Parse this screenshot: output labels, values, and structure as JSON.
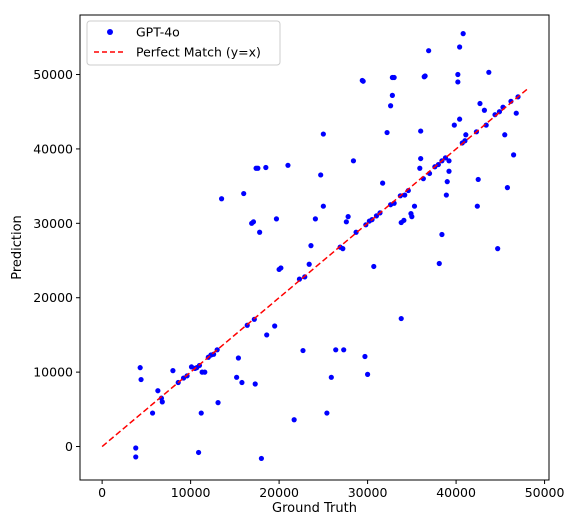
{
  "chart_data": {
    "type": "scatter",
    "title": "",
    "xlabel": "Ground Truth",
    "ylabel": "Prediction",
    "xlim": [
      -2500,
      50500
    ],
    "ylim": [
      -4500,
      58000
    ],
    "xticks": [
      0,
      10000,
      20000,
      30000,
      40000,
      50000
    ],
    "yticks": [
      0,
      10000,
      20000,
      30000,
      40000,
      50000
    ],
    "legend_position": "top-left",
    "series": [
      {
        "name": "GPT-4o",
        "kind": "scatter",
        "color": "#0000ff",
        "points": [
          [
            3800,
            -200
          ],
          [
            3800,
            -1400
          ],
          [
            4300,
            10600
          ],
          [
            4400,
            9000
          ],
          [
            5700,
            4500
          ],
          [
            6300,
            7500
          ],
          [
            6700,
            6500
          ],
          [
            6800,
            6000
          ],
          [
            8000,
            10200
          ],
          [
            8600,
            8600
          ],
          [
            9200,
            9200
          ],
          [
            9600,
            9500
          ],
          [
            10100,
            10700
          ],
          [
            10500,
            10500
          ],
          [
            10700,
            10600
          ],
          [
            10900,
            -800
          ],
          [
            11000,
            10900
          ],
          [
            11200,
            4500
          ],
          [
            11300,
            10000
          ],
          [
            11600,
            10000
          ],
          [
            12000,
            12000
          ],
          [
            12300,
            12300
          ],
          [
            12600,
            12400
          ],
          [
            13000,
            13000
          ],
          [
            13100,
            5900
          ],
          [
            13500,
            33300
          ],
          [
            15200,
            9300
          ],
          [
            15400,
            11900
          ],
          [
            15800,
            8600
          ],
          [
            16000,
            34000
          ],
          [
            16400,
            16300
          ],
          [
            16900,
            30000
          ],
          [
            17100,
            30200
          ],
          [
            17200,
            17100
          ],
          [
            17300,
            8400
          ],
          [
            17400,
            37400
          ],
          [
            17600,
            37400
          ],
          [
            17800,
            28800
          ],
          [
            18000,
            -1600
          ],
          [
            18500,
            37500
          ],
          [
            18600,
            15000
          ],
          [
            19500,
            16200
          ],
          [
            19700,
            30600
          ],
          [
            20000,
            23800
          ],
          [
            20200,
            24000
          ],
          [
            21000,
            37800
          ],
          [
            21700,
            3600
          ],
          [
            22300,
            22500
          ],
          [
            22700,
            12900
          ],
          [
            22900,
            22800
          ],
          [
            23400,
            24500
          ],
          [
            23600,
            27000
          ],
          [
            24100,
            30600
          ],
          [
            24700,
            36500
          ],
          [
            25000,
            42000
          ],
          [
            25000,
            32300
          ],
          [
            25400,
            4500
          ],
          [
            25900,
            9300
          ],
          [
            26400,
            13000
          ],
          [
            26900,
            26800
          ],
          [
            27200,
            26600
          ],
          [
            27300,
            13000
          ],
          [
            27600,
            30200
          ],
          [
            27800,
            30900
          ],
          [
            28400,
            38400
          ],
          [
            28700,
            28800
          ],
          [
            29400,
            49200
          ],
          [
            29500,
            49100
          ],
          [
            29700,
            12100
          ],
          [
            29800,
            29800
          ],
          [
            30000,
            9700
          ],
          [
            30200,
            30300
          ],
          [
            30500,
            30500
          ],
          [
            30700,
            24200
          ],
          [
            31000,
            31000
          ],
          [
            31400,
            31400
          ],
          [
            31700,
            35400
          ],
          [
            32200,
            42200
          ],
          [
            32600,
            32500
          ],
          [
            32600,
            45800
          ],
          [
            32800,
            47200
          ],
          [
            32800,
            49600
          ],
          [
            33000,
            49600
          ],
          [
            33000,
            32700
          ],
          [
            33700,
            33700
          ],
          [
            33800,
            17200
          ],
          [
            33800,
            30100
          ],
          [
            34100,
            30400
          ],
          [
            34200,
            33800
          ],
          [
            34600,
            34400
          ],
          [
            34900,
            31300
          ],
          [
            35000,
            30900
          ],
          [
            35300,
            32300
          ],
          [
            35900,
            37400
          ],
          [
            36000,
            38700
          ],
          [
            36000,
            42400
          ],
          [
            36300,
            36000
          ],
          [
            36400,
            49700
          ],
          [
            36500,
            49800
          ],
          [
            36900,
            53200
          ],
          [
            37000,
            36700
          ],
          [
            37600,
            37600
          ],
          [
            38000,
            37900
          ],
          [
            38100,
            24600
          ],
          [
            38400,
            38400
          ],
          [
            38400,
            28500
          ],
          [
            38800,
            38800
          ],
          [
            38900,
            33800
          ],
          [
            39000,
            35600
          ],
          [
            39200,
            37000
          ],
          [
            39200,
            38400
          ],
          [
            39800,
            43200
          ],
          [
            40200,
            50000
          ],
          [
            40200,
            49000
          ],
          [
            40400,
            53700
          ],
          [
            40400,
            44000
          ],
          [
            40700,
            40800
          ],
          [
            40800,
            55500
          ],
          [
            41000,
            41100
          ],
          [
            41100,
            41900
          ],
          [
            42300,
            42300
          ],
          [
            42400,
            32300
          ],
          [
            42500,
            35900
          ],
          [
            42700,
            46100
          ],
          [
            43200,
            45200
          ],
          [
            43400,
            43200
          ],
          [
            43700,
            50300
          ],
          [
            44400,
            44600
          ],
          [
            44700,
            26600
          ],
          [
            44900,
            45000
          ],
          [
            45300,
            45600
          ],
          [
            45500,
            41900
          ],
          [
            45800,
            34800
          ],
          [
            46200,
            46400
          ],
          [
            46500,
            39200
          ],
          [
            46800,
            44800
          ],
          [
            47000,
            47000
          ]
        ]
      },
      {
        "name": "Perfect Match (y=x)",
        "kind": "line",
        "style": "dashed",
        "color": "#ff0000",
        "x": [
          0,
          48000
        ],
        "y": [
          0,
          48000
        ]
      }
    ]
  }
}
